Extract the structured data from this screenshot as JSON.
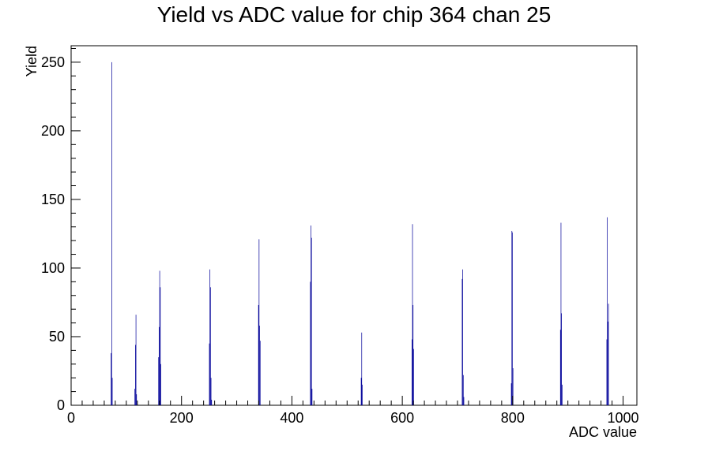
{
  "chart_data": {
    "type": "bar",
    "title": "Yield vs ADC value for chip 364 chan 25",
    "xlabel": "ADC value",
    "ylabel": "Yield",
    "xlim": [
      0,
      1025
    ],
    "ylim": [
      0,
      262
    ],
    "x_ticks": [
      0,
      200,
      400,
      600,
      800,
      1000
    ],
    "y_ticks": [
      0,
      50,
      100,
      150,
      200,
      250
    ],
    "grid": false,
    "legend": "none",
    "color": "#000099",
    "series": [
      {
        "x": [
          72,
          73,
          74,
          115,
          116,
          117,
          118,
          158,
          159,
          160,
          161,
          162,
          250,
          251,
          252,
          253,
          254,
          339,
          340,
          341,
          342,
          433,
          434,
          435,
          436,
          525,
          526,
          527,
          617,
          618,
          619,
          620,
          708,
          709,
          710,
          711,
          797,
          798,
          799,
          800,
          886,
          887,
          888,
          889,
          970,
          971,
          972,
          973
        ],
        "values": [
          38,
          250,
          20,
          12,
          44,
          66,
          8,
          35,
          57,
          98,
          86,
          30,
          45,
          99,
          86,
          20,
          4,
          73,
          121,
          58,
          47,
          90,
          131,
          122,
          12,
          20,
          53,
          15,
          48,
          132,
          73,
          41,
          92,
          99,
          22,
          6,
          16,
          127,
          126,
          27,
          55,
          133,
          67,
          15,
          48,
          137,
          61,
          74
        ]
      }
    ]
  }
}
